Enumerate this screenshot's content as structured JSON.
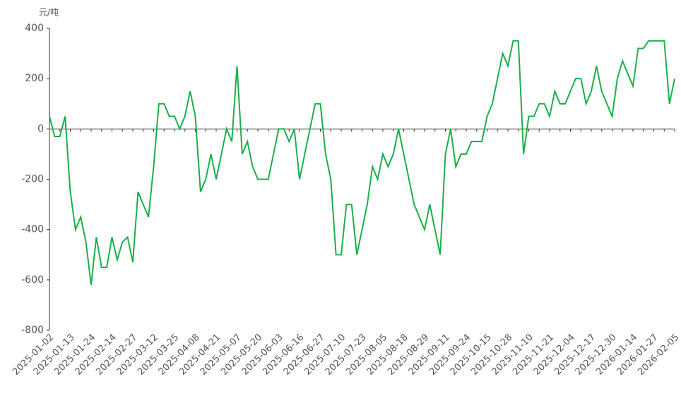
{
  "chart_data": {
    "type": "line",
    "y_unit": "元/吨",
    "categories": [
      "2025-01-02",
      null,
      null,
      null,
      "2025-01-13",
      null,
      null,
      null,
      "2025-01-24",
      null,
      null,
      null,
      "2025-02-14",
      null,
      null,
      null,
      "2025-02-27",
      null,
      null,
      null,
      "2025-03-12",
      null,
      null,
      null,
      "2025-03-25",
      null,
      null,
      null,
      "2025-04-08",
      null,
      null,
      null,
      "2025-04-21",
      null,
      null,
      null,
      "2025-05-07",
      null,
      null,
      null,
      "2025-05-20",
      null,
      null,
      null,
      "2025-06-03",
      null,
      null,
      null,
      "2025-06-16",
      null,
      null,
      null,
      "2025-06-27",
      null,
      null,
      null,
      "2025-07-10",
      null,
      null,
      null,
      "2025-07-23",
      null,
      null,
      null,
      "2025-08-05",
      null,
      null,
      null,
      "2025-08-18",
      null,
      null,
      null,
      "2025-08-29",
      null,
      null,
      null,
      "2025-09-11",
      null,
      null,
      null,
      "2025-09-24",
      null,
      null,
      null,
      "2025-10-15",
      null,
      null,
      null,
      "2025-10-28",
      null,
      null,
      null,
      "2025-11-10",
      null,
      null,
      null,
      "2025-11-21",
      null,
      null,
      null,
      "2025-12-04",
      null,
      null,
      null,
      "2025-12-17",
      null,
      null,
      null,
      "2025-12-30",
      null,
      null,
      null,
      "2026-01-14",
      null,
      null,
      null,
      "2026-01-27",
      null,
      null,
      null,
      "2026-02-05"
    ],
    "series": [
      {
        "color": "#1aaf4b",
        "values": [
          50,
          -30,
          -30,
          50,
          -250,
          -400,
          -350,
          -450,
          -620,
          -430,
          -550,
          -550,
          -430,
          -520,
          -450,
          -430,
          -530,
          -250,
          -300,
          -350,
          -150,
          100,
          100,
          50,
          50,
          0,
          50,
          150,
          50,
          -250,
          -200,
          -100,
          -200,
          -100,
          0,
          -50,
          250,
          -100,
          -50,
          -150,
          -200,
          -200,
          -200,
          -100,
          0,
          0,
          -50,
          0,
          -200,
          -100,
          0,
          100,
          100,
          -100,
          -200,
          -500,
          -500,
          -300,
          -300,
          -500,
          -400,
          -300,
          -150,
          -200,
          -100,
          -150,
          -100,
          0,
          -100,
          -200,
          -300,
          -350,
          -400,
          -300,
          -400,
          -500,
          -100,
          0,
          -150,
          -100,
          -100,
          -50,
          -50,
          -50,
          50,
          100,
          200,
          300,
          250,
          350,
          350,
          -100,
          50,
          50,
          100,
          100,
          50,
          150,
          100,
          100,
          150,
          200,
          200,
          100,
          150,
          250,
          150,
          100,
          50,
          200,
          270,
          220,
          170,
          320,
          320,
          350,
          350,
          350,
          350,
          100,
          200
        ]
      }
    ],
    "ylim": [
      -800,
      400
    ],
    "yticks": [
      -800,
      -600,
      -400,
      -200,
      0,
      200,
      400
    ]
  }
}
